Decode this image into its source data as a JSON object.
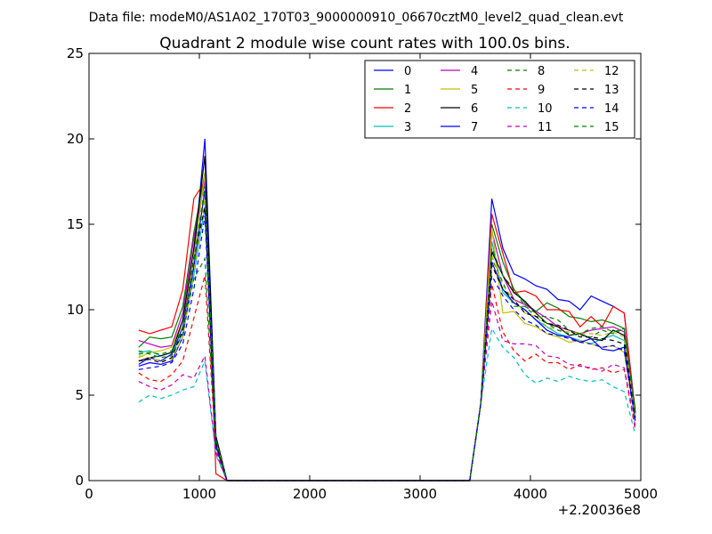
{
  "chart_data": {
    "type": "line",
    "suptitle": "Data file: modeM0/AS1A02_170T03_9000000910_06670cztM0_level2_quad_clean.evt",
    "title": "Quadrant 2 module wise count rates with 100.0s bins.",
    "xlabel": "",
    "ylabel": "",
    "x_offset_label": "+2.20036e8",
    "xlim": [
      0,
      5000
    ],
    "ylim": [
      0,
      25
    ],
    "x_ticks": [
      "0",
      "1000",
      "2000",
      "3000",
      "4000",
      "5000"
    ],
    "y_ticks": [
      "0",
      "5",
      "10",
      "15",
      "20",
      "25"
    ],
    "x_tick_values": [
      0,
      1000,
      2000,
      3000,
      4000,
      5000
    ],
    "y_tick_values": [
      0,
      5,
      10,
      15,
      20,
      25
    ],
    "legend_position": "top-right",
    "x": [
      450,
      550,
      650,
      750,
      850,
      950,
      1050,
      1150,
      1250,
      1350,
      1450,
      1550,
      1650,
      1750,
      1850,
      1950,
      2050,
      2150,
      2250,
      2350,
      2450,
      2550,
      2650,
      2750,
      2850,
      2950,
      3050,
      3150,
      3250,
      3350,
      3450,
      3550,
      3650,
      3750,
      3850,
      3950,
      4050,
      4150,
      4250,
      4350,
      4450,
      4550,
      4650,
      4750,
      4850,
      4950
    ],
    "series": [
      {
        "name": "0",
        "color": "#0000ff",
        "dash": false,
        "peak1": [
          6.8,
          7.2,
          7.0,
          7.4,
          9.0,
          13.0,
          20.0
        ],
        "tail1": [
          2.6,
          0.0
        ],
        "peak2": [
          16.5,
          13.6,
          12.1,
          11.8,
          11.4,
          11.2,
          10.6,
          10.5,
          10.0,
          10.8,
          10.5,
          10.2,
          9.8,
          4.0
        ]
      },
      {
        "name": "1",
        "color": "#008000",
        "dash": false,
        "peak1": [
          7.8,
          8.4,
          8.3,
          8.4,
          10.2,
          14.5,
          18.0
        ],
        "tail1": [
          2.4,
          0.0
        ],
        "peak2": [
          15.0,
          12.8,
          11.2,
          10.4,
          9.9,
          10.4,
          10.1,
          9.6,
          9.5,
          9.3,
          9.4,
          9.2,
          8.9,
          4.2
        ]
      },
      {
        "name": "2",
        "color": "#ff0000",
        "dash": false,
        "peak1": [
          8.8,
          8.6,
          8.8,
          9.0,
          11.2,
          16.5,
          17.5
        ],
        "tail1": [
          0.4,
          0.0
        ],
        "peak2": [
          15.6,
          13.3,
          11.0,
          11.1,
          10.8,
          10.0,
          10.0,
          9.9,
          9.0,
          9.6,
          9.0,
          10.2,
          9.8,
          3.8
        ]
      },
      {
        "name": "3",
        "color": "#00bfbf",
        "dash": false,
        "peak1": [
          7.5,
          7.6,
          7.3,
          7.5,
          8.6,
          12.0,
          16.0
        ],
        "tail1": [
          2.0,
          0.0
        ],
        "peak2": [
          14.0,
          11.0,
          10.4,
          10.0,
          9.4,
          9.0,
          8.6,
          8.4,
          8.2,
          8.0,
          8.3,
          8.5,
          8.2,
          3.6
        ]
      },
      {
        "name": "4",
        "color": "#bf00bf",
        "dash": false,
        "peak1": [
          8.2,
          8.0,
          7.8,
          7.9,
          9.8,
          14.2,
          17.5
        ],
        "tail1": [
          2.2,
          0.0
        ],
        "peak2": [
          14.6,
          12.0,
          10.6,
          10.3,
          9.9,
          9.5,
          9.0,
          8.8,
          8.6,
          8.8,
          8.9,
          9.0,
          8.7,
          3.9
        ]
      },
      {
        "name": "5",
        "color": "#bfbf00",
        "dash": false,
        "peak1": [
          7.2,
          7.5,
          7.6,
          7.8,
          9.4,
          13.0,
          18.0
        ],
        "tail1": [
          2.5,
          0.0
        ],
        "peak2": [
          14.8,
          9.8,
          9.9,
          9.2,
          9.0,
          8.6,
          8.4,
          8.1,
          8.2,
          8.0,
          7.8,
          7.9,
          7.5,
          3.7
        ]
      },
      {
        "name": "6",
        "color": "#000000",
        "dash": false,
        "peak1": [
          7.0,
          7.2,
          7.3,
          7.5,
          9.4,
          13.6,
          19.0
        ],
        "tail1": [
          2.6,
          0.0
        ],
        "peak2": [
          13.4,
          12.0,
          11.0,
          10.5,
          9.8,
          9.2,
          9.0,
          8.5,
          8.6,
          8.3,
          8.2,
          8.8,
          8.5,
          4.0
        ]
      },
      {
        "name": "7",
        "color": "#0000ff",
        "dash": false,
        "peak1": [
          6.7,
          6.9,
          6.8,
          7.0,
          8.4,
          12.5,
          17.0
        ],
        "tail1": [
          2.1,
          0.0
        ],
        "peak2": [
          12.8,
          11.2,
          10.4,
          10.0,
          9.4,
          8.8,
          8.5,
          8.4,
          8.1,
          8.3,
          7.7,
          7.6,
          7.8,
          3.5
        ]
      },
      {
        "name": "8",
        "color": "#008000",
        "dash": true,
        "peak1": [
          7.6,
          7.4,
          7.2,
          7.3,
          8.6,
          11.8,
          13.0
        ],
        "tail1": [
          2.0,
          0.0
        ],
        "peak2": [
          13.0,
          11.6,
          10.2,
          10.2,
          9.6,
          9.6,
          9.4,
          8.8,
          8.6,
          8.9,
          9.0,
          8.7,
          8.9,
          3.6
        ]
      },
      {
        "name": "9",
        "color": "#ff0000",
        "dash": true,
        "peak1": [
          6.3,
          5.9,
          5.8,
          6.2,
          7.0,
          9.5,
          12.0
        ],
        "tail1": [
          1.8,
          0.0
        ],
        "peak2": [
          11.5,
          8.7,
          7.6,
          7.0,
          7.4,
          6.9,
          6.9,
          6.5,
          6.8,
          6.5,
          6.6,
          6.3,
          6.5,
          3.0
        ]
      },
      {
        "name": "10",
        "color": "#00bfbf",
        "dash": true,
        "peak1": [
          4.6,
          5.0,
          4.8,
          5.0,
          5.3,
          5.5,
          7.0
        ],
        "tail1": [
          1.5,
          0.0
        ],
        "peak2": [
          8.9,
          7.8,
          7.2,
          6.2,
          5.7,
          6.0,
          5.8,
          6.1,
          5.9,
          5.8,
          5.9,
          5.5,
          5.2,
          2.7
        ]
      },
      {
        "name": "11",
        "color": "#bf00bf",
        "dash": true,
        "peak1": [
          5.8,
          5.5,
          5.3,
          5.6,
          6.2,
          6.0,
          7.3
        ],
        "tail1": [
          1.6,
          0.0
        ],
        "peak2": [
          10.5,
          8.2,
          8.0,
          8.0,
          7.9,
          7.3,
          7.2,
          6.8,
          6.7,
          6.6,
          6.4,
          6.8,
          6.6,
          3.2
        ]
      },
      {
        "name": "12",
        "color": "#bfbf00",
        "dash": true,
        "peak1": [
          7.3,
          7.2,
          7.0,
          7.1,
          8.4,
          12.2,
          16.5
        ],
        "tail1": [
          2.3,
          0.0
        ],
        "peak2": [
          13.2,
          11.4,
          10.6,
          9.8,
          9.6,
          9.0,
          8.8,
          8.7,
          8.6,
          8.6,
          8.5,
          8.7,
          8.4,
          3.8
        ]
      },
      {
        "name": "13",
        "color": "#000000",
        "dash": true,
        "peak1": [
          7.0,
          7.1,
          6.9,
          7.2,
          8.8,
          13.0,
          16.0
        ],
        "tail1": [
          2.2,
          0.0
        ],
        "peak2": [
          12.6,
          11.2,
          10.6,
          9.8,
          9.6,
          9.2,
          9.1,
          8.8,
          8.4,
          8.4,
          8.3,
          8.2,
          8.0,
          3.7
        ]
      },
      {
        "name": "14",
        "color": "#0000ff",
        "dash": true,
        "peak1": [
          6.5,
          6.6,
          6.7,
          6.9,
          8.0,
          11.2,
          15.5
        ],
        "tail1": [
          2.0,
          0.0
        ],
        "peak2": [
          12.0,
          10.8,
          10.0,
          9.4,
          9.1,
          8.6,
          8.5,
          8.3,
          8.1,
          8.0,
          7.8,
          7.9,
          7.6,
          3.4
        ]
      },
      {
        "name": "15",
        "color": "#008000",
        "dash": true,
        "peak1": [
          7.4,
          7.5,
          7.4,
          7.6,
          9.0,
          12.8,
          17.2
        ],
        "tail1": [
          2.4,
          0.0
        ],
        "peak2": [
          13.6,
          12.0,
          11.2,
          10.2,
          9.8,
          9.2,
          8.8,
          8.6,
          8.5,
          8.4,
          8.8,
          8.6,
          8.9,
          3.9
        ]
      }
    ]
  }
}
